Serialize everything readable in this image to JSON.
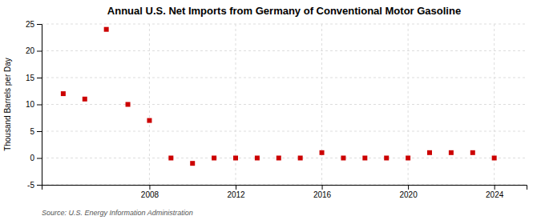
{
  "chart_data": {
    "type": "scatter",
    "title": "Annual U.S. Net Imports from Germany of Conventional Motor Gasoline",
    "ylabel": "Thousand Barrels per Day",
    "annotations": [
      "Source: U.S. Energy Information Administration"
    ],
    "x": [
      2004,
      2005,
      2006,
      2007,
      2008,
      2009,
      2010,
      2011,
      2012,
      2013,
      2014,
      2015,
      2016,
      2017,
      2018,
      2019,
      2020,
      2021,
      2022,
      2023,
      2024
    ],
    "values": [
      12,
      11,
      24,
      10,
      7,
      0,
      -1,
      0,
      0,
      0,
      0,
      0,
      1,
      0,
      0,
      0,
      0,
      1,
      1,
      1,
      0
    ],
    "color": "#cc0000",
    "marker": "square",
    "xlim": [
      2003,
      2025.5
    ],
    "xticks": [
      2008,
      2012,
      2016,
      2020,
      2024
    ],
    "ylim": [
      -5,
      25
    ],
    "yticks": [
      -5,
      0,
      5,
      10,
      15,
      20,
      25
    ],
    "grid": true
  }
}
